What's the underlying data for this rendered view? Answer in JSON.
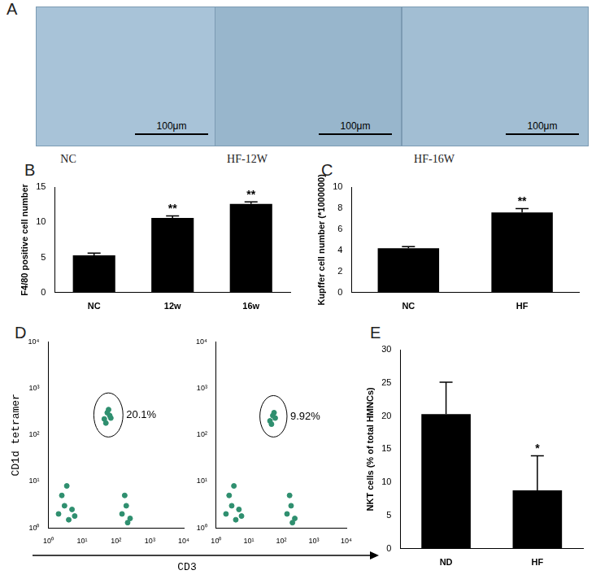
{
  "micrographs": {
    "panel": "A",
    "images": [
      {
        "caption": "NC",
        "scale_bar": "100μm"
      },
      {
        "caption": "HF-12W",
        "scale_bar": "100μm"
      },
      {
        "caption": "HF-16W",
        "scale_bar": "100μm"
      }
    ]
  },
  "chart_data": [
    {
      "panel": "B",
      "type": "bar",
      "categories": [
        "NC",
        "12w",
        "16w"
      ],
      "values": [
        5.3,
        10.6,
        12.6
      ],
      "errors": [
        0.3,
        0.3,
        0.3
      ],
      "annotations": [
        null,
        "**",
        "**"
      ],
      "color": "#000000",
      "ylabel": "F4/80 positive cell number",
      "ylim": [
        0,
        15
      ],
      "yticks": [
        0,
        5,
        10,
        15
      ],
      "grid": false
    },
    {
      "panel": "C",
      "type": "bar",
      "categories": [
        "NC",
        "HF"
      ],
      "values": [
        4.2,
        7.6
      ],
      "errors": [
        0.15,
        0.35
      ],
      "annotations": [
        null,
        "**"
      ],
      "color": "#000000",
      "ylabel": "Kupffer cell number (*1000000)",
      "ylim": [
        0,
        10
      ],
      "yticks": [
        0,
        2,
        4,
        6,
        8,
        10
      ],
      "grid": false
    },
    {
      "panel": "D",
      "type": "scatter",
      "log": true,
      "ylabel": "CD1d tetramer",
      "xlabel": "CD3",
      "color": "#2f8f6f",
      "x": [
        2,
        3,
        4,
        5,
        2.5,
        6,
        3.5,
        150,
        200,
        260,
        180,
        220,
        45,
        55,
        65,
        50,
        70,
        60
      ],
      "y": [
        2,
        3,
        1.5,
        2.5,
        5,
        1.8,
        8,
        2,
        3,
        1.6,
        5,
        1.3,
        220,
        300,
        260,
        180,
        230,
        350
      ],
      "gate": {
        "x": [
          22,
          160
        ],
        "y": [
          90,
          800
        ]
      },
      "gate_label": "20.1%",
      "xlim": [
        1,
        10000
      ],
      "ylim": [
        1,
        10000
      ],
      "xticks": [
        {
          "value": 1,
          "label": "10⁰"
        },
        {
          "value": 10,
          "label": "10¹"
        },
        {
          "value": 100,
          "label": "10²"
        },
        {
          "value": 1000,
          "label": "10³"
        },
        {
          "value": 10000,
          "label": "10⁴"
        }
      ],
      "yticks": [
        {
          "value": 1,
          "label": "10⁰"
        },
        {
          "value": 10,
          "label": "10¹"
        },
        {
          "value": 100,
          "label": "10²"
        },
        {
          "value": 1000,
          "label": "10³"
        },
        {
          "value": 10000,
          "label": "10⁴"
        }
      ]
    },
    {
      "panel": null,
      "type": "scatter",
      "log": true,
      "color": "#2f8f6f",
      "x": [
        2,
        3,
        4,
        5,
        2.5,
        6,
        3.5,
        150,
        200,
        260,
        180,
        220,
        45,
        55,
        65,
        50,
        60
      ],
      "y": [
        2,
        3,
        1.5,
        2.5,
        5,
        1.8,
        8,
        2,
        3,
        1.6,
        5,
        1.3,
        200,
        260,
        230,
        170,
        300
      ],
      "gate": {
        "x": [
          22,
          150
        ],
        "y": [
          90,
          700
        ]
      },
      "gate_label": "9.92%",
      "xlim": [
        1,
        10000
      ],
      "ylim": [
        1,
        10000
      ],
      "xticks": [
        {
          "value": 1,
          "label": "10⁰"
        },
        {
          "value": 10,
          "label": "10¹"
        },
        {
          "value": 100,
          "label": "10²"
        },
        {
          "value": 1000,
          "label": "10³"
        },
        {
          "value": 10000,
          "label": "10⁴"
        }
      ],
      "yticks": [
        {
          "value": 1,
          "label": "10⁰"
        },
        {
          "value": 10,
          "label": "10¹"
        },
        {
          "value": 100,
          "label": "10²"
        },
        {
          "value": 1000,
          "label": "10³"
        },
        {
          "value": 10000,
          "label": "10⁴"
        }
      ]
    },
    {
      "panel": "E",
      "type": "bar",
      "categories": [
        "ND",
        "HF"
      ],
      "values": [
        20.3,
        8.8
      ],
      "errors": [
        4.8,
        5.2
      ],
      "annotations": [
        null,
        "*"
      ],
      "color": "#000000",
      "ylabel": "NKT cells (% of total HMNCs)",
      "ylim": [
        0,
        30
      ],
      "yticks": [
        0,
        5,
        10,
        15,
        20,
        25,
        30
      ],
      "grid": false
    }
  ]
}
